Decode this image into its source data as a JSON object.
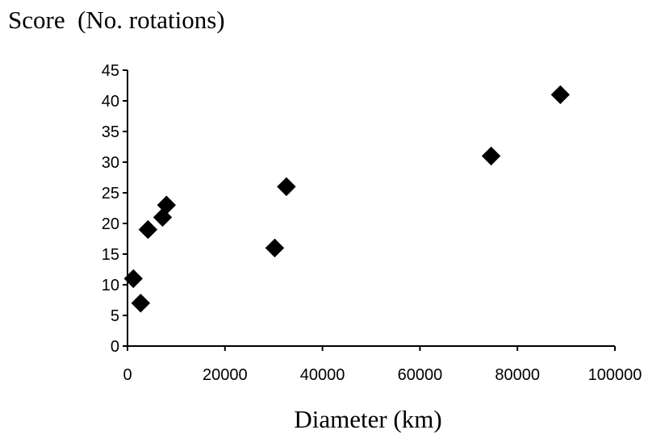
{
  "chart_data": {
    "type": "scatter",
    "ylabel": "Score  (No. rotations)",
    "xlabel": "Diameter (km)",
    "xlim": [
      0,
      100000
    ],
    "ylim": [
      0,
      45
    ],
    "x_ticks": [
      0,
      20000,
      40000,
      60000,
      80000,
      100000
    ],
    "y_ticks": [
      0,
      5,
      10,
      15,
      20,
      25,
      30,
      35,
      40,
      45
    ],
    "x_tick_labels": [
      "0",
      "20000",
      "40000",
      "60000",
      "80000",
      "100000"
    ],
    "y_tick_labels": [
      "0",
      "5",
      "10",
      "15",
      "20",
      "25",
      "30",
      "35",
      "40",
      "45"
    ],
    "grid": false,
    "legend": false,
    "marker": "diamond",
    "marker_color": "#000000",
    "series": [
      {
        "points": [
          {
            "x": 1200,
            "y": 11
          },
          {
            "x": 2700,
            "y": 7
          },
          {
            "x": 4200,
            "y": 19
          },
          {
            "x": 7200,
            "y": 21
          },
          {
            "x": 8000,
            "y": 23
          },
          {
            "x": 30200,
            "y": 16
          },
          {
            "x": 32600,
            "y": 26
          },
          {
            "x": 74600,
            "y": 31
          },
          {
            "x": 88800,
            "y": 41
          }
        ]
      }
    ]
  }
}
